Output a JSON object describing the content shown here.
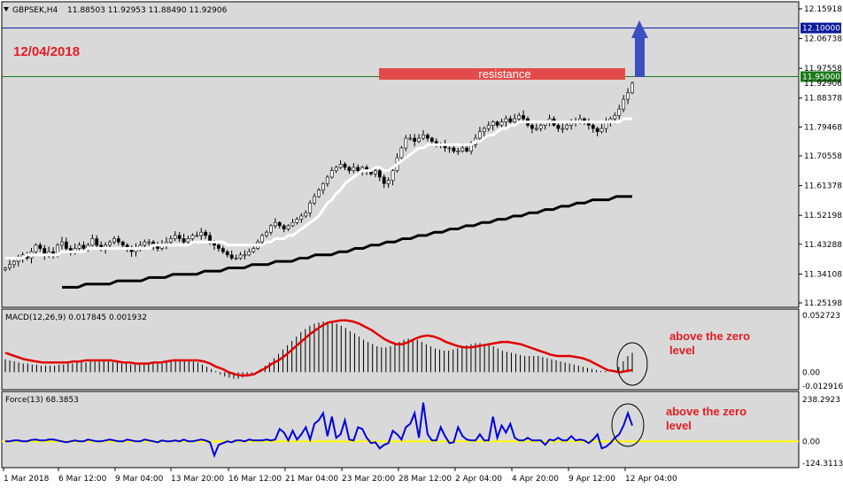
{
  "header": {
    "symbol": "GBPSEK,H4",
    "ohlc": "11.88503 11.92953 11.88490 11.92906"
  },
  "annotations": {
    "date": "12/04/2018",
    "resistance_label": "resistance",
    "macd_note_line1": "above the zero",
    "macd_note_line2": "level",
    "force_note_line1": "above the zero",
    "force_note_line2": "level"
  },
  "colors": {
    "panel_bg": "#d9d9d9",
    "candle": "#000000",
    "sma_fast": "#ffffff",
    "sma_slow": "#000000",
    "macd_signal": "#e00000",
    "force_line": "#0000dd",
    "zero_line": "#ffff00",
    "resistance_fill": "#e34b4b",
    "level_blue": "#0a1a9a",
    "level_green": "#1a7a1a",
    "arrow": "#3a4fc0",
    "note_red": "#e31b23"
  },
  "chart_data": [
    {
      "type": "candlestick",
      "panel": "price",
      "yticks": [
        "12.15918",
        "12.06738",
        "11.97558",
        "11.88378",
        "11.79468",
        "11.70558",
        "11.61378",
        "11.52198",
        "11.43288",
        "11.34108",
        "11.25198"
      ],
      "ylim": [
        11.252,
        12.159
      ],
      "levels": [
        {
          "name": "12.10000",
          "value": 12.1,
          "color": "#0a1a9a"
        },
        {
          "name": "11.95000",
          "value": 11.95,
          "color": "#1a7a1a"
        }
      ],
      "last_price_tag": "11.92906",
      "resistance_zone": {
        "label": "resistance",
        "from": 11.942,
        "to": 11.955
      },
      "xticks": [
        "1 Mar 2018",
        "6 Mar 12:00",
        "9 Mar 04:00",
        "13 Mar 20:00",
        "16 Mar 12:00",
        "21 Mar 04:00",
        "23 Mar 20:00",
        "28 Mar 12:00",
        "2 Apr 04:00",
        "4 Apr 20:00",
        "9 Apr 12:00",
        "12 Apr 04:00"
      ],
      "close": [
        11.36,
        11.37,
        11.38,
        11.39,
        11.4,
        11.39,
        11.41,
        11.43,
        11.42,
        11.4,
        11.41,
        11.4,
        11.43,
        11.44,
        11.42,
        11.41,
        11.42,
        11.43,
        11.42,
        11.43,
        11.45,
        11.43,
        11.42,
        11.43,
        11.44,
        11.45,
        11.44,
        11.43,
        11.42,
        11.41,
        11.42,
        11.43,
        11.44,
        11.44,
        11.43,
        11.42,
        11.43,
        11.44,
        11.45,
        11.46,
        11.45,
        11.44,
        11.45,
        11.46,
        11.46,
        11.47,
        11.46,
        11.44,
        11.43,
        11.42,
        11.41,
        11.4,
        11.39,
        11.39,
        11.4,
        11.4,
        11.41,
        11.42,
        11.44,
        11.46,
        11.47,
        11.49,
        11.5,
        11.49,
        11.48,
        11.49,
        11.5,
        11.51,
        11.52,
        11.53,
        11.56,
        11.58,
        11.6,
        11.62,
        11.64,
        11.66,
        11.67,
        11.68,
        11.67,
        11.66,
        11.67,
        11.66,
        11.67,
        11.66,
        11.65,
        11.66,
        11.64,
        11.62,
        11.63,
        11.66,
        11.7,
        11.73,
        11.76,
        11.76,
        11.75,
        11.76,
        11.77,
        11.76,
        11.75,
        11.74,
        11.74,
        11.73,
        11.73,
        11.72,
        11.72,
        11.73,
        11.72,
        11.74,
        11.76,
        11.78,
        11.79,
        11.8,
        11.81,
        11.8,
        11.81,
        11.82,
        11.81,
        11.82,
        11.83,
        11.82,
        11.8,
        11.79,
        11.79,
        11.8,
        11.81,
        11.82,
        11.8,
        11.79,
        11.79,
        11.8,
        11.81,
        11.81,
        11.82,
        11.81,
        11.8,
        11.79,
        11.78,
        11.79,
        11.81,
        11.82,
        11.83,
        11.85,
        11.88,
        11.9,
        11.93
      ],
      "sma_fast": [
        11.39,
        11.39,
        11.39,
        11.39,
        11.39,
        11.4,
        11.4,
        11.4,
        11.4,
        11.4,
        11.4,
        11.4,
        11.4,
        11.41,
        11.41,
        11.41,
        11.41,
        11.41,
        11.41,
        11.42,
        11.42,
        11.42,
        11.42,
        11.42,
        11.42,
        11.42,
        11.42,
        11.42,
        11.42,
        11.42,
        11.42,
        11.42,
        11.42,
        11.42,
        11.43,
        11.43,
        11.43,
        11.43,
        11.43,
        11.43,
        11.43,
        11.43,
        11.43,
        11.44,
        11.44,
        11.44,
        11.44,
        11.44,
        11.44,
        11.44,
        11.44,
        11.43,
        11.43,
        11.43,
        11.43,
        11.43,
        11.43,
        11.43,
        11.43,
        11.43,
        11.44,
        11.44,
        11.45,
        11.45,
        11.45,
        11.46,
        11.46,
        11.47,
        11.48,
        11.49,
        11.5,
        11.51,
        11.52,
        11.54,
        11.56,
        11.57,
        11.59,
        11.6,
        11.62,
        11.63,
        11.64,
        11.65,
        11.66,
        11.66,
        11.66,
        11.67,
        11.67,
        11.66,
        11.66,
        11.67,
        11.68,
        11.69,
        11.7,
        11.71,
        11.72,
        11.73,
        11.73,
        11.74,
        11.74,
        11.74,
        11.74,
        11.74,
        11.74,
        11.74,
        11.74,
        11.74,
        11.74,
        11.74,
        11.75,
        11.75,
        11.76,
        11.77,
        11.77,
        11.78,
        11.79,
        11.79,
        11.8,
        11.8,
        11.81,
        11.81,
        11.81,
        11.81,
        11.81,
        11.81,
        11.81,
        11.81,
        11.81,
        11.81,
        11.81,
        11.81,
        11.81,
        11.81,
        11.81,
        11.81,
        11.81,
        11.81,
        11.81,
        11.81,
        11.81,
        11.81,
        11.81,
        11.81,
        11.82,
        11.82,
        11.82
      ],
      "sma_slow": [
        11.3,
        11.3,
        11.3,
        11.31,
        11.31,
        11.31,
        11.31,
        11.32,
        11.32,
        11.32,
        11.32,
        11.33,
        11.33,
        11.33,
        11.34,
        11.34,
        11.34,
        11.34,
        11.35,
        11.35,
        11.35,
        11.36,
        11.36,
        11.36,
        11.37,
        11.37,
        11.37,
        11.38,
        11.38,
        11.38,
        11.39,
        11.39,
        11.4,
        11.4,
        11.4,
        11.41,
        11.41,
        11.42,
        11.42,
        11.43,
        11.43,
        11.44,
        11.44,
        11.45,
        11.45,
        11.46,
        11.46,
        11.47,
        11.47,
        11.48,
        11.48,
        11.49,
        11.49,
        11.5,
        11.5,
        11.51,
        11.51,
        11.52,
        11.52,
        11.53,
        11.53,
        11.54,
        11.54,
        11.55,
        11.55,
        11.56,
        11.56,
        11.57,
        11.57,
        11.57,
        11.58,
        11.58,
        11.58
      ]
    },
    {
      "type": "bar+line",
      "panel": "macd",
      "title": "MACD(12,26,9) 0.017845 0.001932",
      "yticks": [
        "0.052723",
        "0.00",
        "-0.012916"
      ],
      "ylim": [
        -0.012916,
        0.052723
      ],
      "histogram": [
        0.012,
        0.011,
        0.01,
        0.009,
        0.008,
        0.008,
        0.007,
        0.007,
        0.006,
        0.006,
        0.006,
        0.006,
        0.007,
        0.007,
        0.008,
        0.008,
        0.009,
        0.009,
        0.009,
        0.01,
        0.01,
        0.01,
        0.01,
        0.01,
        0.009,
        0.009,
        0.008,
        0.008,
        0.007,
        0.007,
        0.007,
        0.008,
        0.008,
        0.009,
        0.01,
        0.01,
        0.011,
        0.011,
        0.012,
        0.012,
        0.012,
        0.011,
        0.01,
        0.009,
        0.007,
        0.005,
        0.003,
        0.001,
        -0.002,
        -0.004,
        -0.005,
        -0.006,
        -0.006,
        -0.005,
        -0.004,
        -0.002,
        0.0,
        0.003,
        0.006,
        0.009,
        0.013,
        0.017,
        0.021,
        0.025,
        0.029,
        0.033,
        0.037,
        0.04,
        0.043,
        0.045,
        0.046,
        0.047,
        0.047,
        0.046,
        0.045,
        0.043,
        0.041,
        0.038,
        0.036,
        0.033,
        0.03,
        0.028,
        0.026,
        0.024,
        0.023,
        0.023,
        0.024,
        0.026,
        0.028,
        0.03,
        0.031,
        0.031,
        0.03,
        0.028,
        0.026,
        0.024,
        0.022,
        0.021,
        0.02,
        0.02,
        0.021,
        0.022,
        0.024,
        0.025,
        0.026,
        0.027,
        0.027,
        0.026,
        0.025,
        0.024,
        0.022,
        0.02,
        0.019,
        0.018,
        0.017,
        0.016,
        0.015,
        0.015,
        0.015,
        0.015,
        0.014,
        0.013,
        0.012,
        0.011,
        0.01,
        0.009,
        0.008,
        0.007,
        0.006,
        0.005,
        0.004,
        0.003,
        0.002,
        0.001,
        0.001,
        0.0,
        0.002,
        0.005,
        0.01,
        0.015,
        0.018
      ],
      "signal": [
        0.018,
        0.016,
        0.014,
        0.012,
        0.011,
        0.01,
        0.009,
        0.009,
        0.009,
        0.009,
        0.009,
        0.01,
        0.01,
        0.011,
        0.011,
        0.011,
        0.011,
        0.011,
        0.01,
        0.009,
        0.009,
        0.008,
        0.008,
        0.008,
        0.009,
        0.009,
        0.01,
        0.011,
        0.011,
        0.011,
        0.011,
        0.011,
        0.01,
        0.008,
        0.005,
        0.003,
        0.0,
        -0.002,
        -0.003,
        -0.003,
        -0.002,
        0.001,
        0.004,
        0.008,
        0.011,
        0.015,
        0.02,
        0.025,
        0.03,
        0.035,
        0.039,
        0.043,
        0.046,
        0.047,
        0.048,
        0.048,
        0.047,
        0.045,
        0.042,
        0.039,
        0.035,
        0.031,
        0.028,
        0.026,
        0.026,
        0.028,
        0.031,
        0.033,
        0.034,
        0.033,
        0.031,
        0.028,
        0.026,
        0.024,
        0.023,
        0.023,
        0.024,
        0.025,
        0.026,
        0.027,
        0.028,
        0.028,
        0.027,
        0.026,
        0.024,
        0.022,
        0.02,
        0.018,
        0.016,
        0.015,
        0.015,
        0.015,
        0.014,
        0.013,
        0.011,
        0.008,
        0.005,
        0.002,
        0.001,
        0.0,
        0.001,
        0.002
      ]
    },
    {
      "type": "line",
      "panel": "force",
      "title": "Force(13) 68.3853",
      "yticks": [
        "238.2923",
        "0.00",
        "-124.3113"
      ],
      "ylim": [
        -124.3113,
        238.2923
      ],
      "values": [
        0,
        0,
        5,
        5,
        0,
        0,
        8,
        10,
        5,
        5,
        10,
        10,
        5,
        0,
        -5,
        0,
        5,
        0,
        0,
        10,
        5,
        0,
        0,
        5,
        10,
        5,
        0,
        0,
        10,
        5,
        0,
        0,
        10,
        5,
        0,
        -5,
        5,
        0,
        0,
        5,
        0,
        10,
        0,
        0,
        5,
        10,
        5,
        -5,
        -80,
        -20,
        -10,
        0,
        -5,
        5,
        5,
        0,
        10,
        5,
        5,
        5,
        10,
        5,
        10,
        70,
        50,
        5,
        60,
        10,
        40,
        80,
        10,
        100,
        120,
        160,
        30,
        140,
        20,
        40,
        120,
        10,
        5,
        80,
        70,
        20,
        -10,
        -5,
        -40,
        -20,
        -10,
        60,
        40,
        10,
        80,
        100,
        160,
        20,
        220,
        40,
        5,
        5,
        80,
        30,
        -10,
        -5,
        80,
        30,
        10,
        5,
        5,
        40,
        5,
        5,
        140,
        20,
        90,
        50,
        100,
        20,
        5,
        5,
        20,
        5,
        5,
        5,
        -20,
        10,
        5,
        20,
        5,
        5,
        30,
        5,
        10,
        5,
        -10,
        10,
        40,
        -40,
        -30,
        -10,
        20,
        40,
        90,
        160,
        90
      ]
    }
  ]
}
